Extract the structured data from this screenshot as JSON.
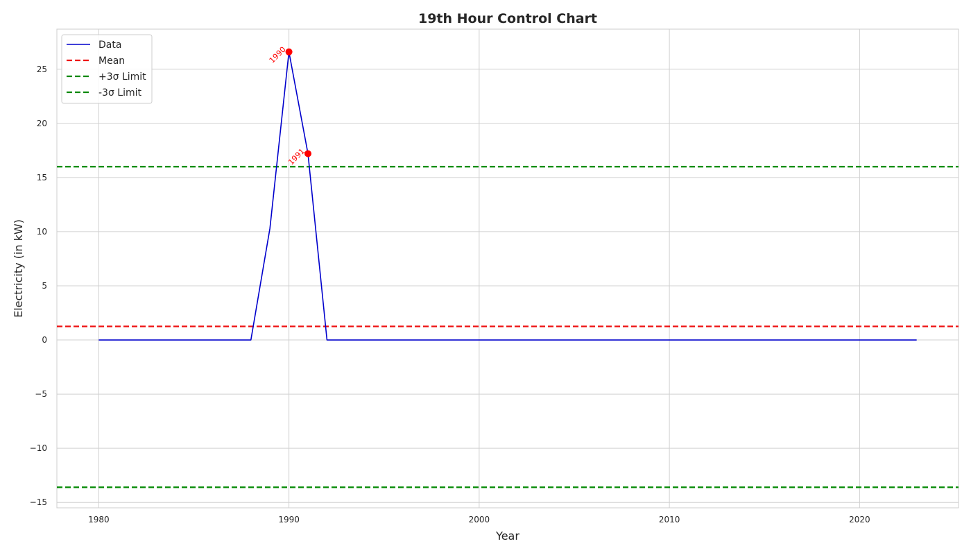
{
  "chart_data": {
    "type": "line",
    "title": "19th Hour Control Chart",
    "xlabel": "Year",
    "ylabel": "Electricity (in kW)",
    "xlim": [
      1977.8,
      2025.2
    ],
    "ylim": [
      -15.5,
      28.7
    ],
    "x_ticks": [
      1980,
      1990,
      2000,
      2010,
      2020
    ],
    "y_ticks": [
      -15,
      -10,
      -5,
      0,
      5,
      10,
      15,
      20,
      25
    ],
    "y_tick_labels": [
      "−15",
      "−10",
      "−5",
      "0",
      "5",
      "10",
      "15",
      "20",
      "25"
    ],
    "grid": true,
    "legend_position": "top-left",
    "series": [
      {
        "name": "Data",
        "color": "#0000cc",
        "style": "solid",
        "x": [
          1980,
          1981,
          1982,
          1983,
          1984,
          1985,
          1986,
          1987,
          1988,
          1989,
          1990,
          1991,
          1992,
          1993,
          1994,
          1995,
          1996,
          1997,
          1998,
          1999,
          2000,
          2001,
          2002,
          2003,
          2004,
          2005,
          2006,
          2007,
          2008,
          2009,
          2010,
          2011,
          2012,
          2013,
          2014,
          2015,
          2016,
          2017,
          2018,
          2019,
          2020,
          2021,
          2022,
          2023
        ],
        "y": [
          0,
          0,
          0,
          0,
          0,
          0,
          0,
          0,
          0,
          10.3,
          26.6,
          17.2,
          0,
          0,
          0,
          0,
          0,
          0,
          0,
          0,
          0,
          0,
          0,
          0,
          0,
          0,
          0,
          0,
          0,
          0,
          0,
          0,
          0,
          0,
          0,
          0,
          0,
          0,
          0,
          0,
          0,
          0,
          0,
          0
        ]
      }
    ],
    "reference_lines": [
      {
        "name": "Mean",
        "value": 1.25,
        "color": "#ee1111",
        "style": "dashed"
      },
      {
        "name": "+3σ Limit",
        "value": 16.0,
        "color": "#008800",
        "style": "dashed"
      },
      {
        "name": "-3σ Limit",
        "value": -13.6,
        "color": "#008800",
        "style": "dashed"
      }
    ],
    "outliers": [
      {
        "x": 1990,
        "y": 26.6,
        "label": "1990"
      },
      {
        "x": 1991,
        "y": 17.2,
        "label": "1991"
      }
    ],
    "outlier_color": "#ff0000"
  }
}
